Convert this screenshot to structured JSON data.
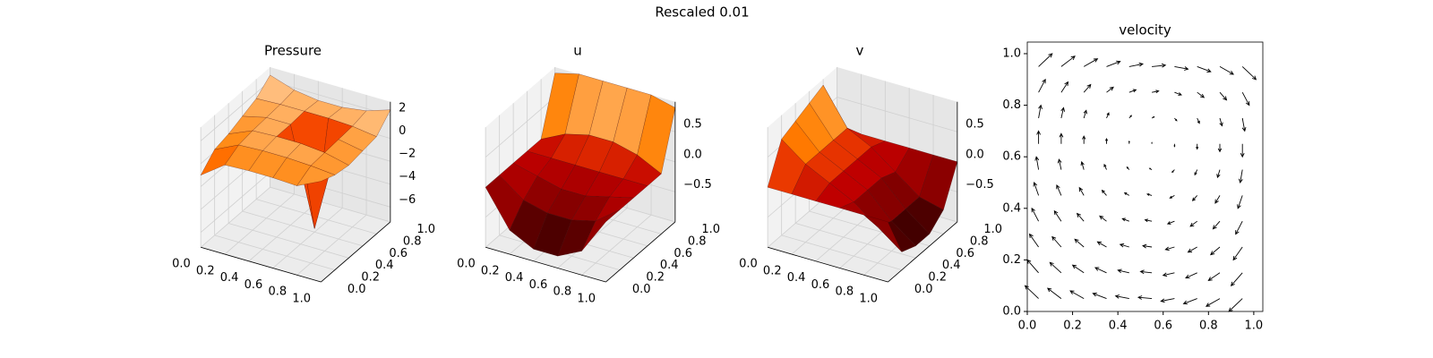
{
  "title": "Rescaled 0.01",
  "chart_data": [
    {
      "type": "surface3d",
      "title": "Pressure",
      "colormap": "gist_heat",
      "x": [
        0,
        0.2,
        0.4,
        0.6,
        0.8,
        1
      ],
      "y": [
        0,
        0.2,
        0.4,
        0.6,
        0.8,
        1
      ],
      "z": [
        [
          -1,
          0.5,
          0.6,
          0.6,
          0.5,
          1.5
        ],
        [
          0.2,
          1.2,
          1.3,
          1.3,
          1.2,
          1.0
        ],
        [
          0.5,
          1.4,
          1.5,
          1.5,
          1.3,
          0.8
        ],
        [
          1.0,
          1.5,
          1.5,
          -7.0,
          1.4,
          1.0
        ],
        [
          1.5,
          1.6,
          1.6,
          1.6,
          1.5,
          1.2
        ],
        [
          2.5,
          1.8,
          1.5,
          1.5,
          1.8,
          2.5
        ]
      ],
      "xlim": [
        0,
        1
      ],
      "ylim": [
        0,
        1
      ],
      "zlim": [
        -7.3,
        3.2
      ],
      "xticks": [
        {
          "value": 0,
          "label": "0.0"
        },
        0.2,
        0.4,
        0.6,
        0.8,
        {
          "value": 1,
          "label": "1.0"
        }
      ],
      "yticks": [
        {
          "value": 0,
          "label": "0.0"
        },
        0.2,
        0.4,
        0.6,
        0.8,
        {
          "value": 1,
          "label": "1.0"
        }
      ],
      "zticks": [
        2,
        0,
        {
          "value": -2,
          "label": "−2"
        },
        {
          "value": -4,
          "label": "−4"
        },
        {
          "value": -6,
          "label": "−6"
        }
      ]
    },
    {
      "type": "surface3d",
      "title": "u",
      "colormap": "gist_heat",
      "x": [
        0,
        0.2,
        0.4,
        0.6,
        0.8,
        1
      ],
      "y": [
        0,
        0.2,
        0.4,
        0.6,
        0.8,
        1
      ],
      "z": [
        [
          0,
          -0.6,
          -0.8,
          -0.8,
          -0.6,
          0
        ],
        [
          0,
          -0.3,
          -0.4,
          -0.4,
          -0.3,
          0
        ],
        [
          0,
          -0.1,
          -0.2,
          -0.2,
          -0.1,
          0
        ],
        [
          0,
          0,
          0,
          0,
          0,
          0
        ],
        [
          0,
          0.2,
          0.3,
          0.3,
          0.2,
          0
        ],
        [
          0.9,
          1.0,
          1.0,
          1.0,
          1.0,
          0.9
        ]
      ],
      "xlim": [
        0,
        1
      ],
      "ylim": [
        0,
        1
      ],
      "zlim": [
        -1,
        1
      ],
      "xticks": [
        {
          "value": 0,
          "label": "0.0"
        },
        0.2,
        0.4,
        0.6,
        0.8,
        {
          "value": 1,
          "label": "1.0"
        }
      ],
      "yticks": [
        {
          "value": 0,
          "label": "0.0"
        },
        0.2,
        0.4,
        0.6,
        0.8,
        {
          "value": 1,
          "label": "1.0"
        }
      ],
      "zticks": [
        0.5,
        {
          "value": 0,
          "label": "0.0"
        },
        {
          "value": -0.5,
          "label": "−0.5"
        }
      ]
    },
    {
      "type": "surface3d",
      "title": "v",
      "colormap": "gist_heat",
      "x": [
        0,
        0.2,
        0.4,
        0.6,
        0.8,
        1
      ],
      "y": [
        0,
        0.2,
        0.4,
        0.6,
        0.8,
        1
      ],
      "z": [
        [
          0,
          0,
          0,
          0,
          0,
          0
        ],
        [
          0.6,
          0.3,
          0.1,
          -0.1,
          -0.4,
          -0.7
        ],
        [
          0.7,
          0.3,
          0.1,
          -0.1,
          -0.5,
          -0.8
        ],
        [
          0.8,
          0.3,
          0.1,
          -0.1,
          -0.5,
          -0.8
        ],
        [
          0.9,
          0.3,
          0.1,
          -0.2,
          -0.5,
          -0.6
        ],
        [
          0,
          0,
          0,
          0,
          0,
          0
        ]
      ],
      "xlim": [
        0,
        1
      ],
      "ylim": [
        0,
        1
      ],
      "zlim": [
        -1,
        1
      ],
      "xticks": [
        {
          "value": 0,
          "label": "0.0"
        },
        0.2,
        0.4,
        0.6,
        0.8,
        {
          "value": 1,
          "label": "1.0"
        }
      ],
      "yticks": [
        {
          "value": 0,
          "label": "0.0"
        },
        0.2,
        0.4,
        0.6,
        0.8,
        {
          "value": 1,
          "label": "1.0"
        }
      ],
      "zticks": [
        0.5,
        {
          "value": 0,
          "label": "0.0"
        },
        {
          "value": -0.5,
          "label": "−0.5"
        }
      ]
    },
    {
      "type": "quiver",
      "title": "velocity",
      "color": "#000000",
      "x": [
        0.05,
        0.15,
        0.25,
        0.35,
        0.45,
        0.55,
        0.65,
        0.75,
        0.85,
        0.95
      ],
      "y": [
        0.05,
        0.15,
        0.25,
        0.35,
        0.45,
        0.55,
        0.65,
        0.75,
        0.85,
        0.95
      ],
      "u": [
        [
          -0.06,
          -0.06,
          -0.06,
          -0.06,
          -0.06,
          -0.06,
          -0.06,
          -0.06,
          -0.06,
          -0.06
        ],
        [
          -0.05,
          -0.05,
          -0.05,
          -0.05,
          -0.05,
          -0.05,
          -0.05,
          -0.05,
          -0.05,
          -0.05
        ],
        [
          -0.04,
          -0.04,
          -0.04,
          -0.04,
          -0.04,
          -0.04,
          -0.04,
          -0.04,
          -0.04,
          -0.04
        ],
        [
          -0.03,
          -0.03,
          -0.03,
          -0.03,
          -0.03,
          -0.03,
          -0.03,
          -0.03,
          -0.03,
          -0.03
        ],
        [
          -0.02,
          -0.02,
          -0.02,
          -0.02,
          -0.02,
          -0.02,
          -0.02,
          -0.02,
          -0.02,
          -0.02
        ],
        [
          -0.01,
          -0.01,
          -0.01,
          -0.01,
          -0.01,
          -0.01,
          -0.01,
          -0.01,
          -0.01,
          -0.01
        ],
        [
          0,
          0,
          0,
          0,
          0,
          0,
          0,
          0,
          0,
          0
        ],
        [
          0.01,
          0.01,
          0.01,
          0.01,
          0.01,
          0.01,
          0.01,
          0.01,
          0.01,
          0.01
        ],
        [
          0.03,
          0.03,
          0.03,
          0.03,
          0.03,
          0.03,
          0.03,
          0.03,
          0.03,
          0.03
        ],
        [
          0.06,
          0.06,
          0.06,
          0.06,
          0.06,
          0.06,
          0.06,
          0.06,
          0.06,
          0.06
        ]
      ],
      "v": [
        [
          0.05,
          0.04,
          0.03,
          0.02,
          0.01,
          0.005,
          -0.01,
          -0.02,
          -0.03,
          -0.05
        ],
        [
          0.05,
          0.04,
          0.03,
          0.02,
          0.01,
          0.005,
          -0.01,
          -0.02,
          -0.03,
          -0.05
        ],
        [
          0.05,
          0.04,
          0.03,
          0.02,
          0.01,
          0.005,
          -0.01,
          -0.02,
          -0.03,
          -0.05
        ],
        [
          0.05,
          0.04,
          0.03,
          0.02,
          0.01,
          0.005,
          -0.01,
          -0.02,
          -0.03,
          -0.05
        ],
        [
          0.05,
          0.04,
          0.03,
          0.02,
          0.01,
          0.005,
          -0.01,
          -0.02,
          -0.03,
          -0.05
        ],
        [
          0.05,
          0.04,
          0.03,
          0.02,
          0.01,
          0.005,
          -0.01,
          -0.02,
          -0.03,
          -0.05
        ],
        [
          0.05,
          0.04,
          0.03,
          0.02,
          0.01,
          0.005,
          -0.01,
          -0.02,
          -0.03,
          -0.05
        ],
        [
          0.05,
          0.04,
          0.03,
          0.02,
          0.01,
          0.005,
          -0.01,
          -0.02,
          -0.03,
          -0.05
        ],
        [
          0.05,
          0.04,
          0.03,
          0.02,
          0.01,
          0.005,
          -0.01,
          -0.02,
          -0.03,
          -0.05
        ],
        [
          0.05,
          0.04,
          0.03,
          0.02,
          0.01,
          0.005,
          -0.01,
          -0.02,
          -0.03,
          -0.05
        ]
      ],
      "xlim": [
        0,
        1.04
      ],
      "ylim": [
        0,
        1.045
      ],
      "xticks": [
        {
          "value": 0,
          "label": "0.0"
        },
        0.2,
        0.4,
        0.6,
        0.8,
        {
          "value": 1,
          "label": "1.0"
        }
      ],
      "yticks": [
        {
          "value": 0,
          "label": "0.0"
        },
        0.2,
        0.4,
        0.6,
        0.8,
        {
          "value": 1,
          "label": "1.0"
        }
      ]
    }
  ]
}
